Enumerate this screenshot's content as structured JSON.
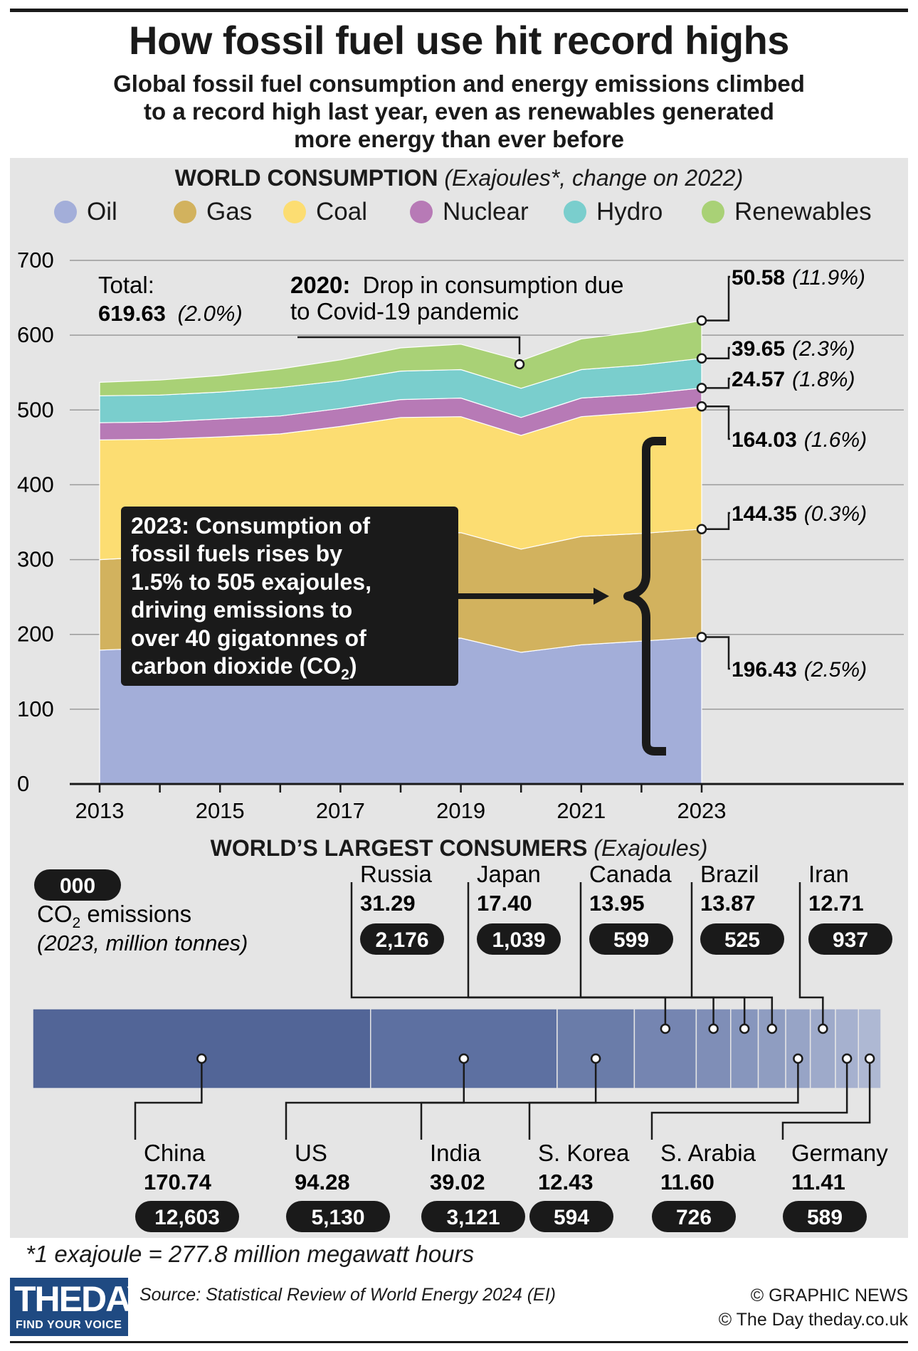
{
  "header": {
    "title": "How fossil fuel use hit record highs",
    "subtitle_lines": [
      "Global fossil fuel consumption and energy emissions climbed",
      "to a record high last year, even as renewables generated",
      "more energy than ever before"
    ]
  },
  "consumption": {
    "heading": "WORLD CONSUMPTION",
    "heading_unit": "(Exajoules*, change on 2022)",
    "total_label": "Total:",
    "total_value": "619.63",
    "total_change": "(2.0%)",
    "covid_note_bold": "2020:",
    "covid_note_lines": [
      "Drop in consumption due",
      "to Covid-19 pandemic"
    ],
    "callout_lines": [
      "2023: Consumption of",
      "fossil fuels rises by",
      "1.5% to 505 exajoules,",
      "driving emissions to",
      "over 40 gigatonnes of",
      "carbon dioxide (CO"
    ],
    "callout_sub": "2",
    "callout_end": ")"
  },
  "chart_data": {
    "type": "area",
    "title": "WORLD CONSUMPTION",
    "x": [
      2013,
      2014,
      2015,
      2016,
      2017,
      2018,
      2019,
      2020,
      2021,
      2022,
      2023
    ],
    "xticks": [
      "2013",
      "2015",
      "2017",
      "2019",
      "2021",
      "2023"
    ],
    "ylim": [
      0,
      700
    ],
    "yticks": [
      "0",
      "100",
      "200",
      "300",
      "400",
      "500",
      "600",
      "700"
    ],
    "stacked": true,
    "grid": true,
    "series": [
      {
        "name": "Oil",
        "color": "#a3aed9",
        "values": [
          179,
          182,
          185,
          188,
          191,
          194,
          195,
          176,
          186,
          191,
          196.43
        ],
        "end_label": "196.43",
        "end_change": "(2.5%)"
      },
      {
        "name": "Gas",
        "color": "#d2b25e",
        "values": [
          121,
          122,
          124,
          127,
          131,
          140,
          141,
          138,
          145,
          144,
          144.35
        ],
        "end_label": "144.35",
        "end_change": "(0.3%)"
      },
      {
        "name": "Coal",
        "color": "#fcdd72",
        "values": [
          160,
          157,
          155,
          153,
          156,
          156,
          155,
          152,
          160,
          162,
          164.03
        ],
        "end_label": "164.03",
        "end_change": "(1.6%)"
      },
      {
        "name": "Nuclear",
        "color": "#b77ab6",
        "values": [
          23,
          23,
          24,
          24,
          24,
          24,
          25,
          24,
          25,
          24,
          24.57
        ],
        "end_label": "24.57",
        "end_change": "(1.8%)"
      },
      {
        "name": "Hydro",
        "color": "#7acecd",
        "values": [
          36,
          36,
          36,
          38,
          37,
          38,
          38,
          39,
          38,
          39,
          39.65
        ],
        "end_label": "39.65",
        "end_change": "(2.3%)"
      },
      {
        "name": "Renewables",
        "color": "#a9d176",
        "values": [
          18,
          20,
          22,
          25,
          28,
          31,
          34,
          37,
          41,
          45,
          50.58
        ],
        "end_label": "50.58",
        "end_change": "(11.9%)"
      }
    ]
  },
  "consumers": {
    "heading": "WORLD’S LARGEST CONSUMERS",
    "heading_unit": "(Exajoules)",
    "key_badge": "000",
    "key_line1_pre": "CO",
    "key_line1_sub": "2",
    "key_line1_post": " emissions",
    "key_line2": "(2023, million tonnes)",
    "countries": [
      {
        "name": "China",
        "value": 170.74,
        "value_text": "170.74",
        "co2": "12,603",
        "color": "#526597"
      },
      {
        "name": "US",
        "value": 94.28,
        "value_text": "94.28",
        "co2": "5,130",
        "color": "#5d70a1"
      },
      {
        "name": "India",
        "value": 39.02,
        "value_text": "39.02",
        "co2": "3,121",
        "color": "#6a7ca9"
      },
      {
        "name": "Russia",
        "value": 31.29,
        "value_text": "31.29",
        "co2": "2,176",
        "color": "#7585b1"
      },
      {
        "name": "Japan",
        "value": 17.4,
        "value_text": "17.40",
        "co2": "1,039",
        "color": "#7f8eb7"
      },
      {
        "name": "Canada",
        "value": 13.95,
        "value_text": "13.95",
        "co2": "599",
        "color": "#8796bd"
      },
      {
        "name": "Brazil",
        "value": 13.87,
        "value_text": "13.87",
        "co2": "525",
        "color": "#8f9dc1"
      },
      {
        "name": "S. Korea",
        "value": 12.43,
        "value_text": "12.43",
        "co2": "594",
        "color": "#97a4c6"
      },
      {
        "name": "Iran",
        "value": 12.71,
        "value_text": "12.71",
        "co2": "937",
        "color": "#9eaaca"
      },
      {
        "name": "S. Arabia",
        "value": 11.6,
        "value_text": "11.60",
        "co2": "726",
        "color": "#a6b1cf"
      },
      {
        "name": "Germany",
        "value": 11.41,
        "value_text": "11.41",
        "co2": "589",
        "color": "#aeb8d3"
      }
    ]
  },
  "footer": {
    "footnote": "*1 exajoule = 277.8 million megawatt hours",
    "source": "Source: Statistical Review of World Energy 2024 (EI)",
    "credit_line1": "© GRAPHIC NEWS",
    "credit_line2": "© The Day   theday.co.uk",
    "logo_text": "THEDAY",
    "logo_tagline": "FIND YOUR VOICE"
  }
}
